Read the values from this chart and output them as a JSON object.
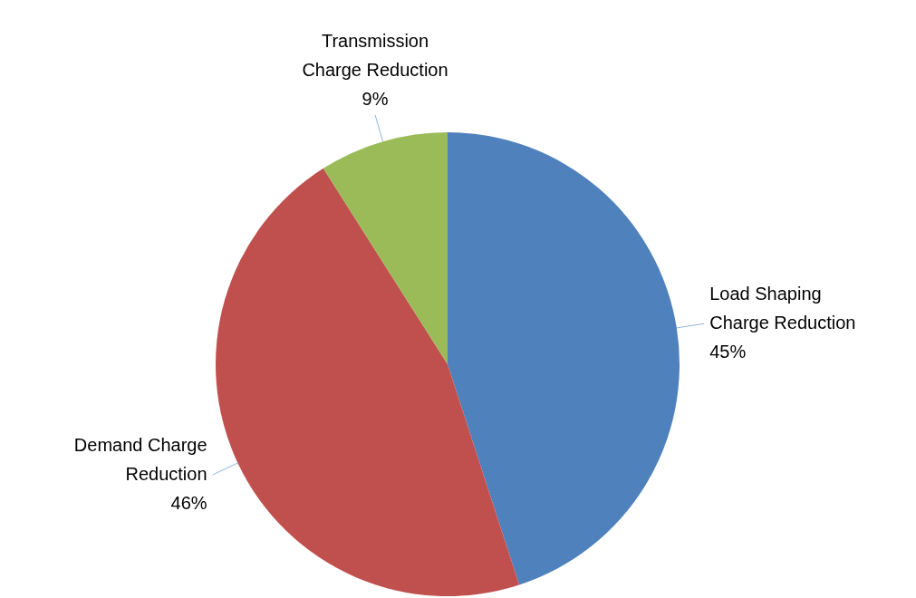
{
  "chart_data": {
    "type": "pie",
    "categories": [
      "Load Shaping Charge Reduction",
      "Demand Charge Reduction",
      "Transmission Charge Reduction"
    ],
    "values": [
      45,
      46,
      9
    ],
    "colors": [
      "#4f81bd",
      "#c0504d",
      "#9bbb59"
    ],
    "value_labels": [
      "45%",
      "46%",
      "9%"
    ],
    "legend": false
  }
}
